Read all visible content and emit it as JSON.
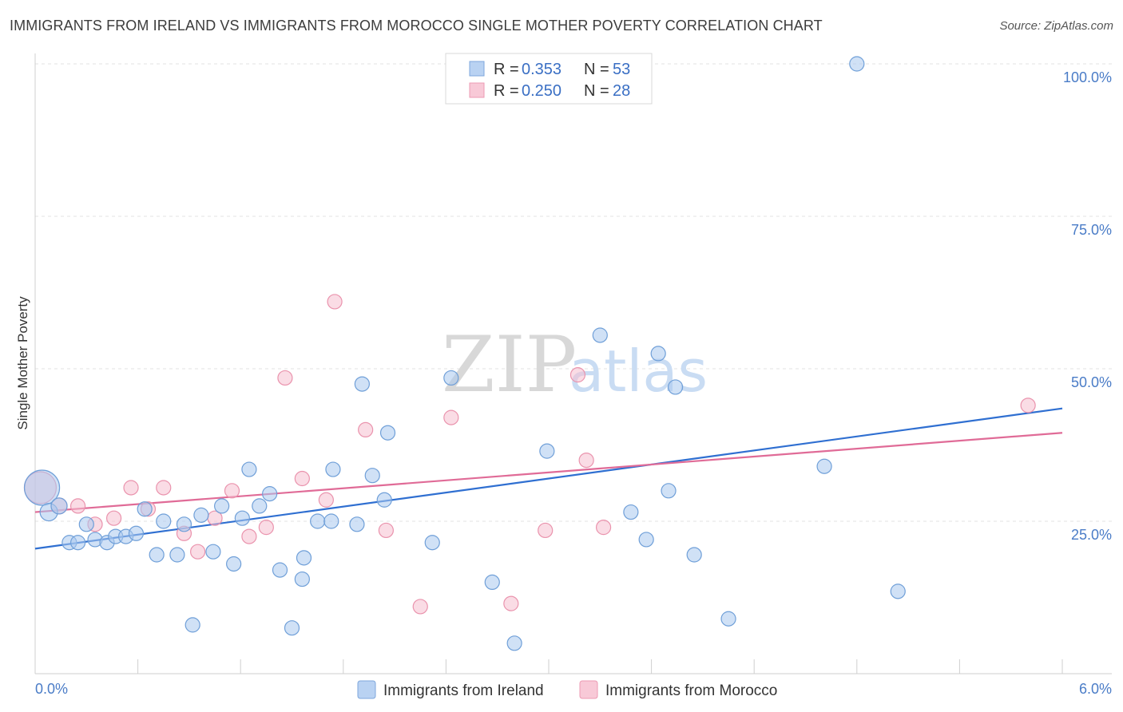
{
  "title": "IMMIGRANTS FROM IRELAND VS IMMIGRANTS FROM MOROCCO SINGLE MOTHER POVERTY CORRELATION CHART",
  "source": "Source: ZipAtlas.com",
  "watermark": {
    "zip": "ZIP",
    "atlas": "atlas"
  },
  "chart_data": {
    "type": "scatter",
    "title": "IMMIGRANTS FROM IRELAND VS IMMIGRANTS FROM MOROCCO SINGLE MOTHER POVERTY CORRELATION CHART",
    "xlabel": "",
    "ylabel": "Single Mother Poverty",
    "xlim": [
      0,
      6
    ],
    "ylim": [
      0,
      100
    ],
    "x_tick_labels": [
      "0.0%",
      "6.0%"
    ],
    "y_ticks": [
      25,
      50,
      75,
      100
    ],
    "y_tick_labels": [
      "25.0%",
      "50.0%",
      "75.0%",
      "100.0%"
    ],
    "legend": {
      "position": "top-center",
      "entries": [
        {
          "r_label": "R =",
          "r_value": "0.353",
          "n_label": "N =",
          "n_value": "53"
        },
        {
          "r_label": "R =",
          "r_value": "0.250",
          "n_label": "N =",
          "n_value": "28"
        }
      ]
    },
    "series": [
      {
        "name": "Immigrants from Ireland",
        "color": "#a9c8ef",
        "stroke": "#6f9fd8",
        "line_color": "#2f6fd1",
        "trend": {
          "x0": 0,
          "y0": 20.5,
          "x1": 6,
          "y1": 43.5
        },
        "points": [
          [
            0.04,
            30.5,
            22
          ],
          [
            0.08,
            26.5,
            11
          ],
          [
            0.14,
            27.5,
            10
          ],
          [
            0.2,
            21.5,
            9
          ],
          [
            0.25,
            21.5,
            9
          ],
          [
            0.3,
            24.5,
            9
          ],
          [
            0.35,
            22,
            9
          ],
          [
            0.42,
            21.5,
            9
          ],
          [
            0.47,
            22.5,
            9
          ],
          [
            0.53,
            22.5,
            9
          ],
          [
            0.59,
            23,
            9
          ],
          [
            0.64,
            27,
            9
          ],
          [
            0.71,
            19.5,
            9
          ],
          [
            0.75,
            25,
            9
          ],
          [
            0.83,
            19.5,
            9
          ],
          [
            0.87,
            24.5,
            9
          ],
          [
            0.92,
            8,
            9
          ],
          [
            0.97,
            26,
            9
          ],
          [
            1.04,
            20,
            9
          ],
          [
            1.09,
            27.5,
            9
          ],
          [
            1.16,
            18,
            9
          ],
          [
            1.21,
            25.5,
            9
          ],
          [
            1.25,
            33.5,
            9
          ],
          [
            1.31,
            27.5,
            9
          ],
          [
            1.37,
            29.5,
            9
          ],
          [
            1.43,
            17,
            9
          ],
          [
            1.5,
            7.5,
            9
          ],
          [
            1.56,
            15.5,
            9
          ],
          [
            1.57,
            19,
            9
          ],
          [
            1.65,
            25,
            9
          ],
          [
            1.73,
            25,
            9
          ],
          [
            1.74,
            33.5,
            9
          ],
          [
            1.88,
            24.5,
            9
          ],
          [
            1.91,
            47.5,
            9
          ],
          [
            1.97,
            32.5,
            9
          ],
          [
            2.04,
            28.5,
            9
          ],
          [
            2.06,
            39.5,
            9
          ],
          [
            2.32,
            21.5,
            9
          ],
          [
            2.43,
            48.5,
            9
          ],
          [
            2.67,
            15,
            9
          ],
          [
            2.8,
            5,
            9
          ],
          [
            2.99,
            36.5,
            9
          ],
          [
            3.3,
            55.5,
            9
          ],
          [
            3.48,
            26.5,
            9
          ],
          [
            3.57,
            22,
            9
          ],
          [
            3.64,
            52.5,
            9
          ],
          [
            3.7,
            30,
            9
          ],
          [
            3.74,
            47,
            9
          ],
          [
            3.85,
            19.5,
            9
          ],
          [
            4.05,
            9,
            9
          ],
          [
            4.61,
            34,
            9
          ],
          [
            4.8,
            100,
            9
          ],
          [
            5.04,
            13.5,
            9
          ]
        ]
      },
      {
        "name": "Immigrants from Morocco",
        "color": "#f6bfd0",
        "stroke": "#ea93ad",
        "line_color": "#e06b97",
        "trend": {
          "x0": 0,
          "y0": 26.5,
          "x1": 6,
          "y1": 39.5
        },
        "points": [
          [
            0.03,
            30.5,
            20
          ],
          [
            0.14,
            27.5,
            10
          ],
          [
            0.25,
            27.5,
            9
          ],
          [
            0.35,
            24.5,
            9
          ],
          [
            0.46,
            25.5,
            9
          ],
          [
            0.56,
            30.5,
            9
          ],
          [
            0.66,
            27,
            9
          ],
          [
            0.75,
            30.5,
            9
          ],
          [
            0.87,
            23,
            9
          ],
          [
            0.95,
            20,
            9
          ],
          [
            1.05,
            25.5,
            9
          ],
          [
            1.15,
            30,
            9
          ],
          [
            1.25,
            22.5,
            9
          ],
          [
            1.35,
            24,
            9
          ],
          [
            1.46,
            48.5,
            9
          ],
          [
            1.56,
            32,
            9
          ],
          [
            1.7,
            28.5,
            9
          ],
          [
            1.75,
            61,
            9
          ],
          [
            1.93,
            40,
            9
          ],
          [
            2.05,
            23.5,
            9
          ],
          [
            2.25,
            11,
            9
          ],
          [
            2.43,
            42,
            9
          ],
          [
            2.78,
            11.5,
            9
          ],
          [
            2.98,
            23.5,
            9
          ],
          [
            3.17,
            49,
            9
          ],
          [
            3.22,
            35,
            9
          ],
          [
            3.32,
            24,
            9
          ],
          [
            5.8,
            44,
            9
          ]
        ]
      }
    ]
  }
}
